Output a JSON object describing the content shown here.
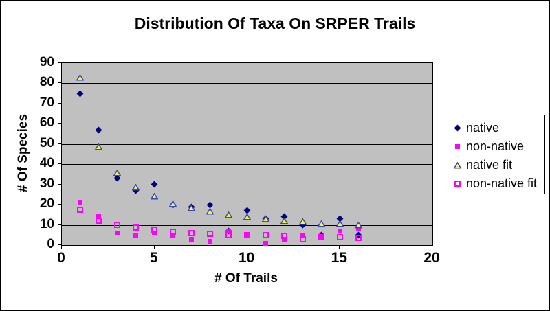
{
  "chart_data": {
    "type": "scatter",
    "title": "Distribution Of Taxa On SRPER Trails",
    "xlabel": "# Of Trails",
    "ylabel": "# Of Species",
    "xlim": [
      0,
      20
    ],
    "ylim": [
      0,
      90
    ],
    "x_ticks": [
      0,
      5,
      10,
      15,
      20
    ],
    "y_ticks": [
      0,
      10,
      20,
      30,
      40,
      50,
      60,
      70,
      80,
      90
    ],
    "grid": "horizontal-only",
    "plot_bg_color": "#C0C0C0",
    "gridline_color": "#000000",
    "legend_position": "right",
    "x": [
      1,
      2,
      3,
      4,
      5,
      6,
      7,
      8,
      9,
      10,
      11,
      12,
      13,
      14,
      15,
      16
    ],
    "series": [
      {
        "name": "native",
        "marker": "diamond",
        "color": "#000080",
        "values": [
          75,
          57,
          33,
          27,
          30,
          20,
          19,
          20,
          7,
          17,
          13,
          14,
          10,
          5,
          13,
          5
        ]
      },
      {
        "name": "non-native",
        "marker": "square",
        "color": "#FF00FF",
        "values": [
          21,
          14,
          6,
          5,
          6,
          5,
          3,
          2,
          7,
          5,
          1,
          3,
          5,
          4,
          7,
          8
        ]
      },
      {
        "name": "native fit",
        "marker": "triangle-open",
        "color": "#3344DD",
        "fill": "#FFFF00",
        "values": [
          83,
          48.5,
          35.5,
          28.5,
          24,
          20.5,
          18.5,
          16.5,
          15,
          14,
          13,
          12,
          11.5,
          10.5,
          10.5,
          10
        ]
      },
      {
        "name": "non-native fit",
        "marker": "square-open",
        "color": "#FF00FF",
        "values": [
          17.5,
          12,
          10,
          8.5,
          7.5,
          6.5,
          6,
          5.5,
          5,
          5,
          5,
          4.5,
          3,
          4,
          4,
          3.5
        ]
      }
    ]
  }
}
